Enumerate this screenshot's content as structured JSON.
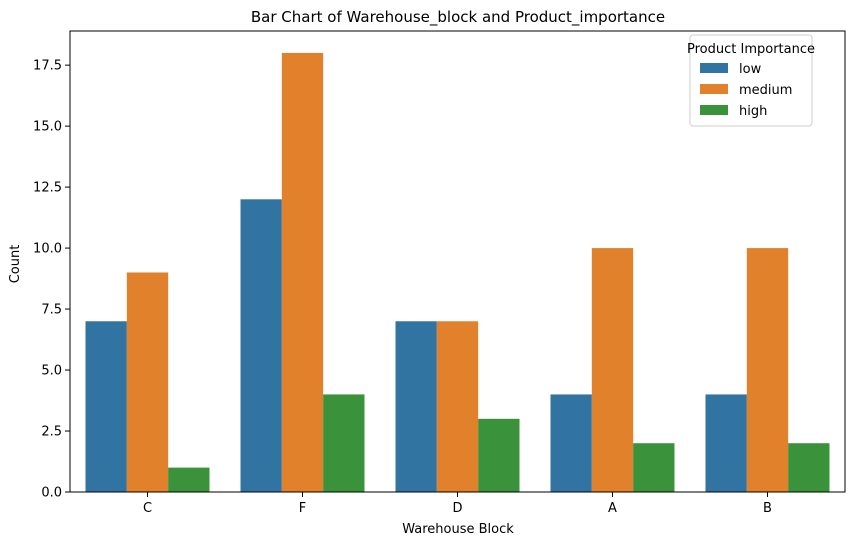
{
  "chart_data": {
    "type": "bar",
    "title": "Bar Chart of Warehouse_block and Product_importance",
    "xlabel": "Warehouse Block",
    "ylabel": "Count",
    "categories": [
      "C",
      "F",
      "D",
      "A",
      "B"
    ],
    "series": [
      {
        "name": "low",
        "color": "#3274a1",
        "values": [
          7,
          12,
          7,
          4,
          4
        ]
      },
      {
        "name": "medium",
        "color": "#e1812c",
        "values": [
          9,
          18,
          7,
          10,
          10
        ]
      },
      {
        "name": "high",
        "color": "#3a923a",
        "values": [
          1,
          4,
          3,
          2,
          2
        ]
      }
    ],
    "ylim": [
      0,
      18.9
    ],
    "yticks": [
      0,
      2.5,
      5,
      7.5,
      10,
      12.5,
      15,
      17.5
    ],
    "ytick_labels": [
      "0.0",
      "2.5",
      "5.0",
      "7.5",
      "10.0",
      "12.5",
      "15.0",
      "17.5"
    ],
    "grid": false,
    "legend": {
      "title": "Product Importance",
      "placement": "top-right"
    }
  }
}
